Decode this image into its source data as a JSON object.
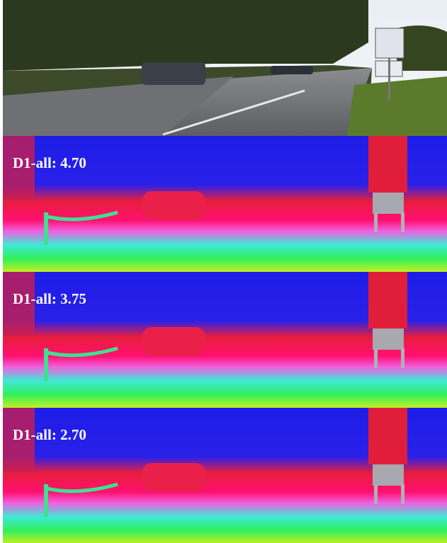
{
  "panels": [
    {
      "label": "D1-all: 4.70"
    },
    {
      "label": "D1-all: 3.75"
    },
    {
      "label": "D1-all: 2.70"
    }
  ]
}
